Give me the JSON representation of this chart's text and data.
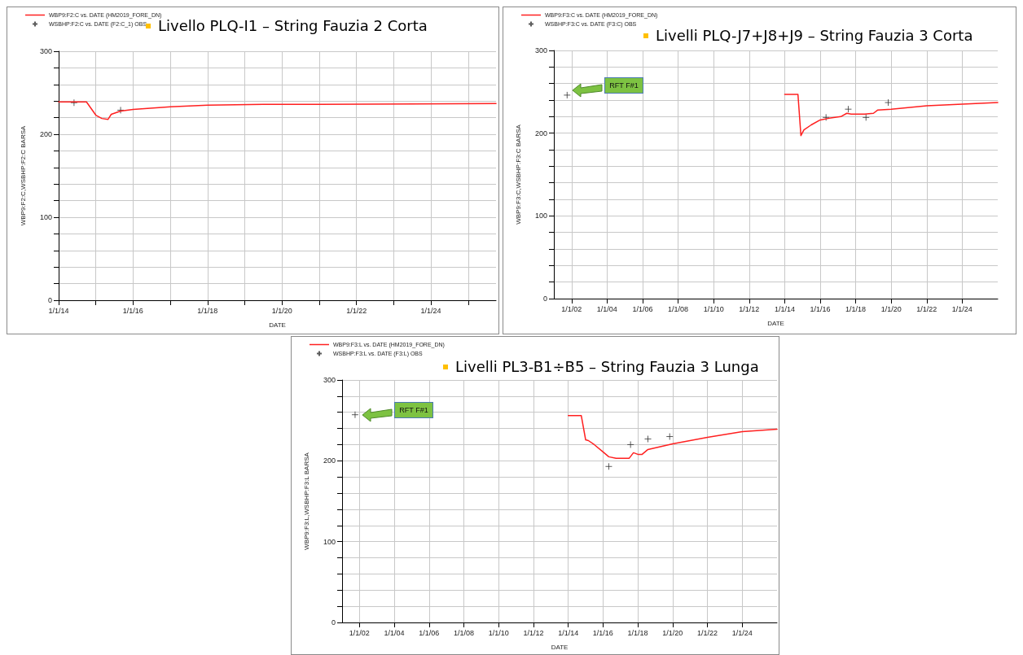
{
  "chart_data": [
    {
      "type": "line",
      "title": "Livello PLQ-I1 – String Fauzia 2 Corta",
      "xlabel": "DATE",
      "ylabel": "WBP9:F2:C,WSBHP:F2:C BARSA",
      "legend": "top left",
      "grid": true,
      "marker": "none",
      "line_style": "solid",
      "xlim": [
        "2014-01-01",
        "2025-10-01"
      ],
      "xticks": [
        {
          "value": "2014-01-01",
          "label": "1/1/14"
        },
        {
          "value": "2015-01-01",
          "label": null
        },
        {
          "value": "2016-01-01",
          "label": "1/1/16"
        },
        {
          "value": "2017-01-01",
          "label": null
        },
        {
          "value": "2018-01-01",
          "label": "1/1/18"
        },
        {
          "value": "2019-01-01",
          "label": null
        },
        {
          "value": "2020-01-01",
          "label": "1/1/20"
        },
        {
          "value": "2021-01-01",
          "label": null
        },
        {
          "value": "2022-01-01",
          "label": "1/1/22"
        },
        {
          "value": "2023-01-01",
          "label": null
        },
        {
          "value": "2024-01-01",
          "label": "1/1/24"
        },
        {
          "value": "2025-01-01",
          "label": null
        }
      ],
      "ylim": [
        0,
        300
      ],
      "yticks": [
        0,
        {
          "value": 20,
          "label": null
        },
        {
          "value": 40,
          "label": null
        },
        {
          "value": 60,
          "label": null
        },
        {
          "value": 80,
          "label": null
        },
        100,
        {
          "value": 120,
          "label": null
        },
        {
          "value": 140,
          "label": null
        },
        {
          "value": 160,
          "label": null
        },
        {
          "value": 180,
          "label": null
        },
        200,
        {
          "value": 220,
          "label": null
        },
        {
          "value": 240,
          "label": null
        },
        {
          "value": 260,
          "label": null
        },
        {
          "value": 280,
          "label": null
        },
        300
      ],
      "series": [
        {
          "name": "WBP9:F2:C vs. DATE (HM2019_FORE_DN)",
          "type": "line",
          "color": "#ff2020",
          "x": [
            "2014-01",
            "2014-10",
            "2015-01",
            "2015-03",
            "2015-05",
            "2015-06",
            "2015-09",
            "2016-01",
            "2017-01",
            "2018-01",
            "2019-07",
            "2021-01",
            "2025-10"
          ],
          "values": [
            239,
            239,
            223,
            219,
            218,
            224,
            228,
            230,
            233,
            235,
            236,
            236,
            237
          ]
        },
        {
          "name": "WSBHP:F2:C vs. DATE (F2:C_1) OBS",
          "type": "scatter",
          "marker": "cross",
          "color": "#333333",
          "x": [
            "2014-06",
            "2015-09"
          ],
          "values": [
            238,
            229
          ]
        }
      ]
    },
    {
      "type": "line",
      "title": "Livelli PLQ-J7+J8+J9 – String Fauzia 3 Corta",
      "xlabel": "DATE",
      "ylabel": "WBP9:F3:C,WSBHP:F3:C BARSA",
      "legend": "top left",
      "grid": true,
      "marker": "none",
      "line_style": "solid",
      "xlim": [
        "2001-01-01",
        "2026-01-01"
      ],
      "xticks": [
        {
          "value": "2002-01-01",
          "label": "1/1/02"
        },
        {
          "value": "2004-01-01",
          "label": "1/1/04"
        },
        {
          "value": "2006-01-01",
          "label": "1/1/06"
        },
        {
          "value": "2008-01-01",
          "label": "1/1/08"
        },
        {
          "value": "2010-01-01",
          "label": "1/1/10"
        },
        {
          "value": "2012-01-01",
          "label": "1/1/12"
        },
        {
          "value": "2014-01-01",
          "label": "1/1/14"
        },
        {
          "value": "2016-01-01",
          "label": "1/1/16"
        },
        {
          "value": "2018-01-01",
          "label": "1/1/18"
        },
        {
          "value": "2020-01-01",
          "label": "1/1/20"
        },
        {
          "value": "2022-01-01",
          "label": "1/1/22"
        },
        {
          "value": "2024-01-01",
          "label": "1/1/24"
        }
      ],
      "ylim": [
        0,
        300
      ],
      "yticks": [
        0,
        {
          "value": 20,
          "label": null
        },
        {
          "value": 40,
          "label": null
        },
        {
          "value": 60,
          "label": null
        },
        {
          "value": 80,
          "label": null
        },
        100,
        {
          "value": 120,
          "label": null
        },
        {
          "value": 140,
          "label": null
        },
        {
          "value": 160,
          "label": null
        },
        {
          "value": 180,
          "label": null
        },
        200,
        {
          "value": 220,
          "label": null
        },
        {
          "value": 240,
          "label": null
        },
        {
          "value": 260,
          "label": null
        },
        {
          "value": 280,
          "label": null
        },
        300
      ],
      "annotations": [
        "RFT F#1"
      ],
      "series": [
        {
          "name": "WBP9:F3:C vs. DATE (HM2019_FORE_DN)",
          "type": "line",
          "color": "#ff2020",
          "x": [
            "2014-01",
            "2014-10",
            "2014-12",
            "2015-02",
            "2015-07",
            "2016-01",
            "2016-07",
            "2017-03",
            "2017-07",
            "2017-10",
            "2018-07",
            "2019-01",
            "2019-04",
            "2020-01",
            "2022-01",
            "2024-01",
            "2026-01"
          ],
          "values": [
            247,
            247,
            197,
            204,
            210,
            216,
            218,
            220,
            224,
            223,
            223,
            224,
            228,
            229,
            233,
            235,
            237
          ]
        },
        {
          "name": "WSBHP:F3:C vs. DATE (F3:C) OBS",
          "type": "scatter",
          "marker": "cross",
          "color": "#333333",
          "x": [
            "2001-10",
            "2016-05",
            "2017-08",
            "2018-08",
            "2019-11"
          ],
          "values": [
            246,
            219,
            229,
            219,
            237
          ]
        }
      ]
    },
    {
      "type": "line",
      "title": "Livelli PL3-B1÷B5 – String Fauzia 3 Lunga",
      "xlabel": "DATE",
      "ylabel": "WBP9:F3:L,WSBHP:F3:L BARSA",
      "legend": "top left",
      "grid": true,
      "marker": "none",
      "line_style": "solid",
      "xlim": [
        "2001-01-01",
        "2026-01-01"
      ],
      "xticks": [
        {
          "value": "2002-01-01",
          "label": "1/1/02"
        },
        {
          "value": "2004-01-01",
          "label": "1/1/04"
        },
        {
          "value": "2006-01-01",
          "label": "1/1/06"
        },
        {
          "value": "2008-01-01",
          "label": "1/1/08"
        },
        {
          "value": "2010-01-01",
          "label": "1/1/10"
        },
        {
          "value": "2012-01-01",
          "label": "1/1/12"
        },
        {
          "value": "2014-01-01",
          "label": "1/1/14"
        },
        {
          "value": "2016-01-01",
          "label": "1/1/16"
        },
        {
          "value": "2018-01-01",
          "label": "1/1/18"
        },
        {
          "value": "2020-01-01",
          "label": "1/1/20"
        },
        {
          "value": "2022-01-01",
          "label": "1/1/22"
        },
        {
          "value": "2024-01-01",
          "label": "1/1/24"
        }
      ],
      "ylim": [
        0,
        300
      ],
      "yticks": [
        0,
        {
          "value": 20,
          "label": null
        },
        {
          "value": 40,
          "label": null
        },
        {
          "value": 60,
          "label": null
        },
        {
          "value": 80,
          "label": null
        },
        100,
        {
          "value": 120,
          "label": null
        },
        {
          "value": 140,
          "label": null
        },
        {
          "value": 160,
          "label": null
        },
        {
          "value": 180,
          "label": null
        },
        200,
        {
          "value": 220,
          "label": null
        },
        {
          "value": 240,
          "label": null
        },
        {
          "value": 260,
          "label": null
        },
        {
          "value": 280,
          "label": null
        },
        300
      ],
      "annotations": [
        "RFT F#1"
      ],
      "series": [
        {
          "name": "WBP9:F3:L vs. DATE (HM2019_FORE_DN)",
          "type": "line",
          "color": "#ff2020",
          "x": [
            "2014-01",
            "2014-10",
            "2015-01",
            "2015-03",
            "2015-07",
            "2016-01",
            "2016-05",
            "2016-10",
            "2017-07",
            "2017-10",
            "2018-01",
            "2018-04",
            "2018-08",
            "2020-01",
            "2022-01",
            "2024-01",
            "2026-01"
          ],
          "values": [
            256,
            256,
            226,
            225,
            220,
            211,
            205,
            203,
            203,
            210,
            208,
            208,
            214,
            221,
            229,
            236,
            239
          ]
        },
        {
          "name": "WSBHP:F3:L vs. DATE (F3:L) OBS",
          "type": "scatter",
          "marker": "cross",
          "color": "#333333",
          "x": [
            "2001-10",
            "2016-05",
            "2017-08",
            "2018-08",
            "2019-11"
          ],
          "values": [
            257,
            193,
            220,
            227,
            230
          ]
        }
      ]
    }
  ]
}
